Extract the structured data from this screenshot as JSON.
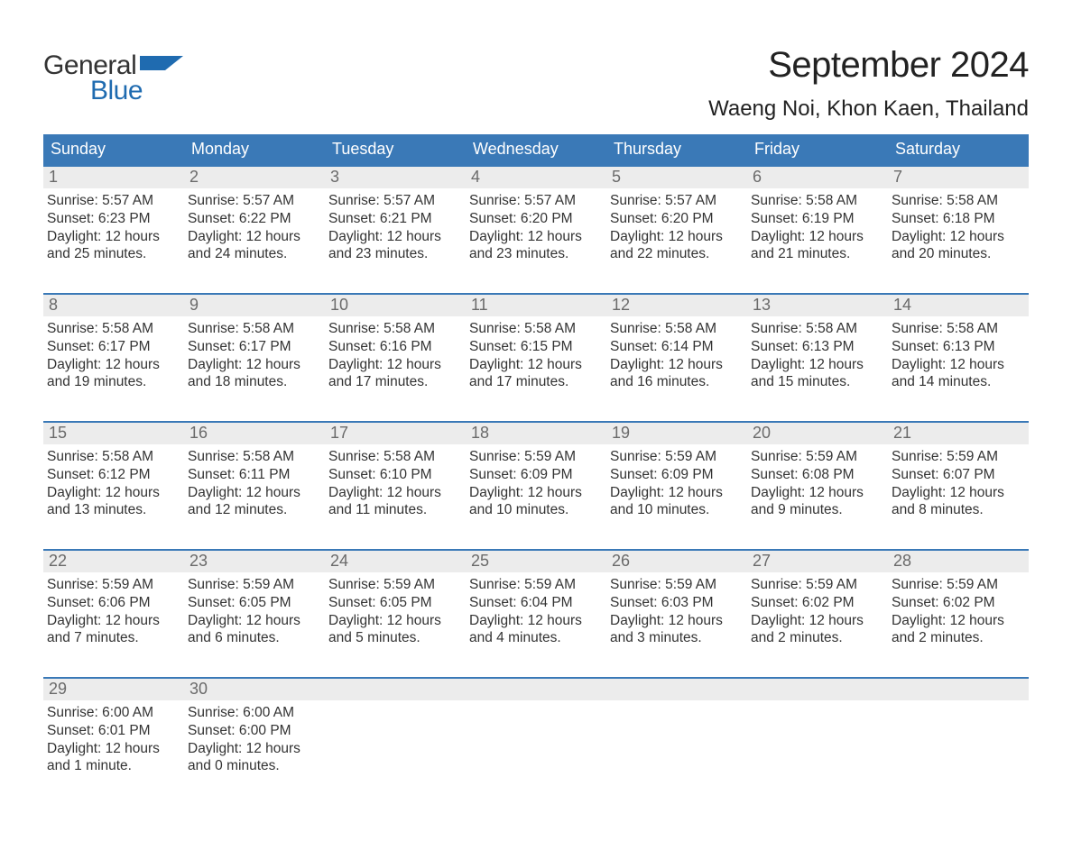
{
  "logo": {
    "top": "General",
    "bottom": "Blue",
    "flag_color": "#1f6bb0",
    "top_color": "#333333",
    "bottom_color": "#1f6bb0"
  },
  "title": "September 2024",
  "location": "Waeng Noi, Khon Kaen, Thailand",
  "colors": {
    "header_bg": "#3a79b7",
    "header_text": "#ffffff",
    "week_border": "#3a79b7",
    "daynum_bg": "#ececec",
    "daynum_text": "#6a6a6a",
    "body_text": "#333333",
    "page_bg": "#ffffff"
  },
  "typography": {
    "title_fontsize": 40,
    "location_fontsize": 24,
    "dayheader_fontsize": 18,
    "daynum_fontsize": 18,
    "body_fontsize": 15.5,
    "logo_fontsize": 30
  },
  "calendar": {
    "columns": 7,
    "day_headers": [
      "Sunday",
      "Monday",
      "Tuesday",
      "Wednesday",
      "Thursday",
      "Friday",
      "Saturday"
    ],
    "weeks": [
      [
        {
          "n": "1",
          "sunrise": "Sunrise: 5:57 AM",
          "sunset": "Sunset: 6:23 PM",
          "daylight": "Daylight: 12 hours and 25 minutes."
        },
        {
          "n": "2",
          "sunrise": "Sunrise: 5:57 AM",
          "sunset": "Sunset: 6:22 PM",
          "daylight": "Daylight: 12 hours and 24 minutes."
        },
        {
          "n": "3",
          "sunrise": "Sunrise: 5:57 AM",
          "sunset": "Sunset: 6:21 PM",
          "daylight": "Daylight: 12 hours and 23 minutes."
        },
        {
          "n": "4",
          "sunrise": "Sunrise: 5:57 AM",
          "sunset": "Sunset: 6:20 PM",
          "daylight": "Daylight: 12 hours and 23 minutes."
        },
        {
          "n": "5",
          "sunrise": "Sunrise: 5:57 AM",
          "sunset": "Sunset: 6:20 PM",
          "daylight": "Daylight: 12 hours and 22 minutes."
        },
        {
          "n": "6",
          "sunrise": "Sunrise: 5:58 AM",
          "sunset": "Sunset: 6:19 PM",
          "daylight": "Daylight: 12 hours and 21 minutes."
        },
        {
          "n": "7",
          "sunrise": "Sunrise: 5:58 AM",
          "sunset": "Sunset: 6:18 PM",
          "daylight": "Daylight: 12 hours and 20 minutes."
        }
      ],
      [
        {
          "n": "8",
          "sunrise": "Sunrise: 5:58 AM",
          "sunset": "Sunset: 6:17 PM",
          "daylight": "Daylight: 12 hours and 19 minutes."
        },
        {
          "n": "9",
          "sunrise": "Sunrise: 5:58 AM",
          "sunset": "Sunset: 6:17 PM",
          "daylight": "Daylight: 12 hours and 18 minutes."
        },
        {
          "n": "10",
          "sunrise": "Sunrise: 5:58 AM",
          "sunset": "Sunset: 6:16 PM",
          "daylight": "Daylight: 12 hours and 17 minutes."
        },
        {
          "n": "11",
          "sunrise": "Sunrise: 5:58 AM",
          "sunset": "Sunset: 6:15 PM",
          "daylight": "Daylight: 12 hours and 17 minutes."
        },
        {
          "n": "12",
          "sunrise": "Sunrise: 5:58 AM",
          "sunset": "Sunset: 6:14 PM",
          "daylight": "Daylight: 12 hours and 16 minutes."
        },
        {
          "n": "13",
          "sunrise": "Sunrise: 5:58 AM",
          "sunset": "Sunset: 6:13 PM",
          "daylight": "Daylight: 12 hours and 15 minutes."
        },
        {
          "n": "14",
          "sunrise": "Sunrise: 5:58 AM",
          "sunset": "Sunset: 6:13 PM",
          "daylight": "Daylight: 12 hours and 14 minutes."
        }
      ],
      [
        {
          "n": "15",
          "sunrise": "Sunrise: 5:58 AM",
          "sunset": "Sunset: 6:12 PM",
          "daylight": "Daylight: 12 hours and 13 minutes."
        },
        {
          "n": "16",
          "sunrise": "Sunrise: 5:58 AM",
          "sunset": "Sunset: 6:11 PM",
          "daylight": "Daylight: 12 hours and 12 minutes."
        },
        {
          "n": "17",
          "sunrise": "Sunrise: 5:58 AM",
          "sunset": "Sunset: 6:10 PM",
          "daylight": "Daylight: 12 hours and 11 minutes."
        },
        {
          "n": "18",
          "sunrise": "Sunrise: 5:59 AM",
          "sunset": "Sunset: 6:09 PM",
          "daylight": "Daylight: 12 hours and 10 minutes."
        },
        {
          "n": "19",
          "sunrise": "Sunrise: 5:59 AM",
          "sunset": "Sunset: 6:09 PM",
          "daylight": "Daylight: 12 hours and 10 minutes."
        },
        {
          "n": "20",
          "sunrise": "Sunrise: 5:59 AM",
          "sunset": "Sunset: 6:08 PM",
          "daylight": "Daylight: 12 hours and 9 minutes."
        },
        {
          "n": "21",
          "sunrise": "Sunrise: 5:59 AM",
          "sunset": "Sunset: 6:07 PM",
          "daylight": "Daylight: 12 hours and 8 minutes."
        }
      ],
      [
        {
          "n": "22",
          "sunrise": "Sunrise: 5:59 AM",
          "sunset": "Sunset: 6:06 PM",
          "daylight": "Daylight: 12 hours and 7 minutes."
        },
        {
          "n": "23",
          "sunrise": "Sunrise: 5:59 AM",
          "sunset": "Sunset: 6:05 PM",
          "daylight": "Daylight: 12 hours and 6 minutes."
        },
        {
          "n": "24",
          "sunrise": "Sunrise: 5:59 AM",
          "sunset": "Sunset: 6:05 PM",
          "daylight": "Daylight: 12 hours and 5 minutes."
        },
        {
          "n": "25",
          "sunrise": "Sunrise: 5:59 AM",
          "sunset": "Sunset: 6:04 PM",
          "daylight": "Daylight: 12 hours and 4 minutes."
        },
        {
          "n": "26",
          "sunrise": "Sunrise: 5:59 AM",
          "sunset": "Sunset: 6:03 PM",
          "daylight": "Daylight: 12 hours and 3 minutes."
        },
        {
          "n": "27",
          "sunrise": "Sunrise: 5:59 AM",
          "sunset": "Sunset: 6:02 PM",
          "daylight": "Daylight: 12 hours and 2 minutes."
        },
        {
          "n": "28",
          "sunrise": "Sunrise: 5:59 AM",
          "sunset": "Sunset: 6:02 PM",
          "daylight": "Daylight: 12 hours and 2 minutes."
        }
      ],
      [
        {
          "n": "29",
          "sunrise": "Sunrise: 6:00 AM",
          "sunset": "Sunset: 6:01 PM",
          "daylight": "Daylight: 12 hours and 1 minute."
        },
        {
          "n": "30",
          "sunrise": "Sunrise: 6:00 AM",
          "sunset": "Sunset: 6:00 PM",
          "daylight": "Daylight: 12 hours and 0 minutes."
        },
        {
          "n": "",
          "sunrise": "",
          "sunset": "",
          "daylight": ""
        },
        {
          "n": "",
          "sunrise": "",
          "sunset": "",
          "daylight": ""
        },
        {
          "n": "",
          "sunrise": "",
          "sunset": "",
          "daylight": ""
        },
        {
          "n": "",
          "sunrise": "",
          "sunset": "",
          "daylight": ""
        },
        {
          "n": "",
          "sunrise": "",
          "sunset": "",
          "daylight": ""
        }
      ]
    ]
  }
}
